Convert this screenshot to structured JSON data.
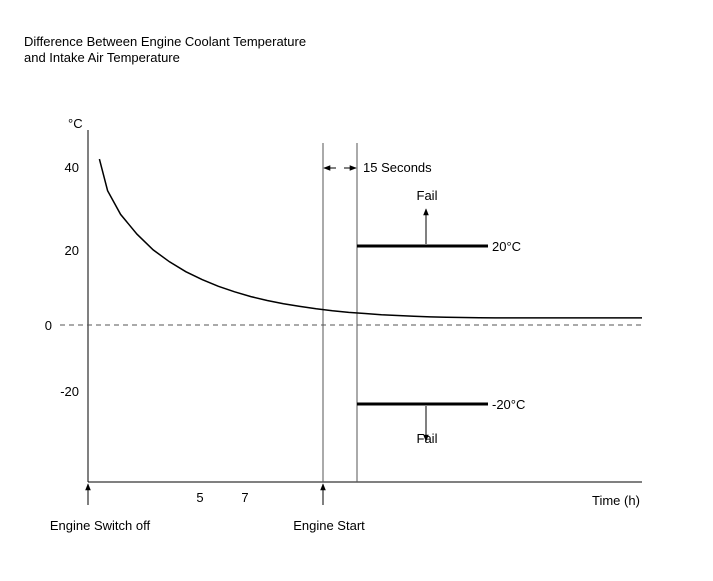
{
  "chart_data": {
    "type": "line",
    "title_lines": [
      "Difference Between Engine Coolant Temperature",
      "and Intake Air Temperature"
    ],
    "ylabel": "°C",
    "xlabel": "Time (h)",
    "y_ticks": [
      "40",
      "20",
      "0",
      "-20"
    ],
    "x_ticks": [
      "5",
      "7"
    ],
    "ylim": [
      -36,
      45
    ],
    "grid": false,
    "series": [
      {
        "x": [
          0.35,
          0.6,
          1,
          1.5,
          2,
          2.5,
          3,
          3.5,
          4,
          4.5,
          5,
          5.5,
          6,
          6.5,
          7,
          7.5,
          8,
          8.5,
          9,
          9.5,
          10,
          10.5,
          11,
          11.5,
          12,
          12.5,
          13,
          14,
          15,
          16,
          17
        ],
        "y": [
          42,
          34,
          28,
          23,
          19,
          16,
          13.5,
          11.5,
          9.8,
          8.4,
          7.2,
          6.2,
          5.4,
          4.7,
          4.1,
          3.6,
          3.2,
          2.9,
          2.6,
          2.4,
          2.2,
          2.05,
          1.95,
          1.9,
          1.85,
          1.8,
          1.8,
          1.8,
          1.8,
          1.8,
          1.8
        ]
      }
    ],
    "events": [
      {
        "label": "Engine Switch off"
      },
      {
        "label": "Engine Start"
      }
    ],
    "interval_label": "15 Seconds",
    "thresholds": [
      {
        "value": 20,
        "label": "20°C",
        "fail_label": "Fail",
        "direction": "up"
      },
      {
        "value": -20,
        "label": "-20°C",
        "fail_label": "Fail",
        "direction": "down"
      }
    ]
  }
}
